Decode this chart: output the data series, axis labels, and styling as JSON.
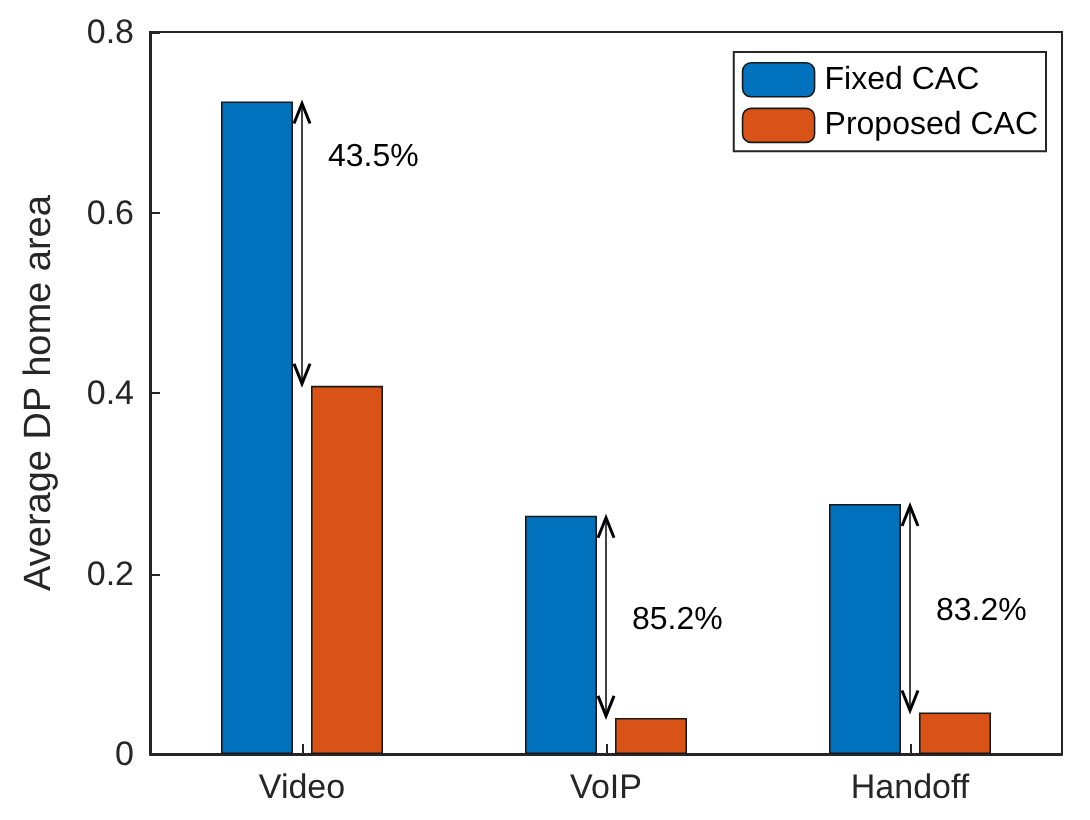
{
  "chart_data": {
    "type": "bar",
    "ylabel": "Average DP home area",
    "categories": [
      "Video",
      "VoIP",
      "Handoff"
    ],
    "series": [
      {
        "name": "Fixed CAC",
        "color": "#0072bd",
        "values": [
          0.723,
          0.264,
          0.277
        ]
      },
      {
        "name": "Proposed CAC",
        "color": "#d95319",
        "values": [
          0.408,
          0.04,
          0.046
        ]
      }
    ],
    "ylim": [
      0,
      0.8
    ],
    "yticks": [
      0,
      0.2,
      0.4,
      0.6,
      0.8
    ],
    "grid": false,
    "legend": "top right",
    "annotations": [
      "43.5%",
      "85.2%",
      "83.2%"
    ]
  }
}
